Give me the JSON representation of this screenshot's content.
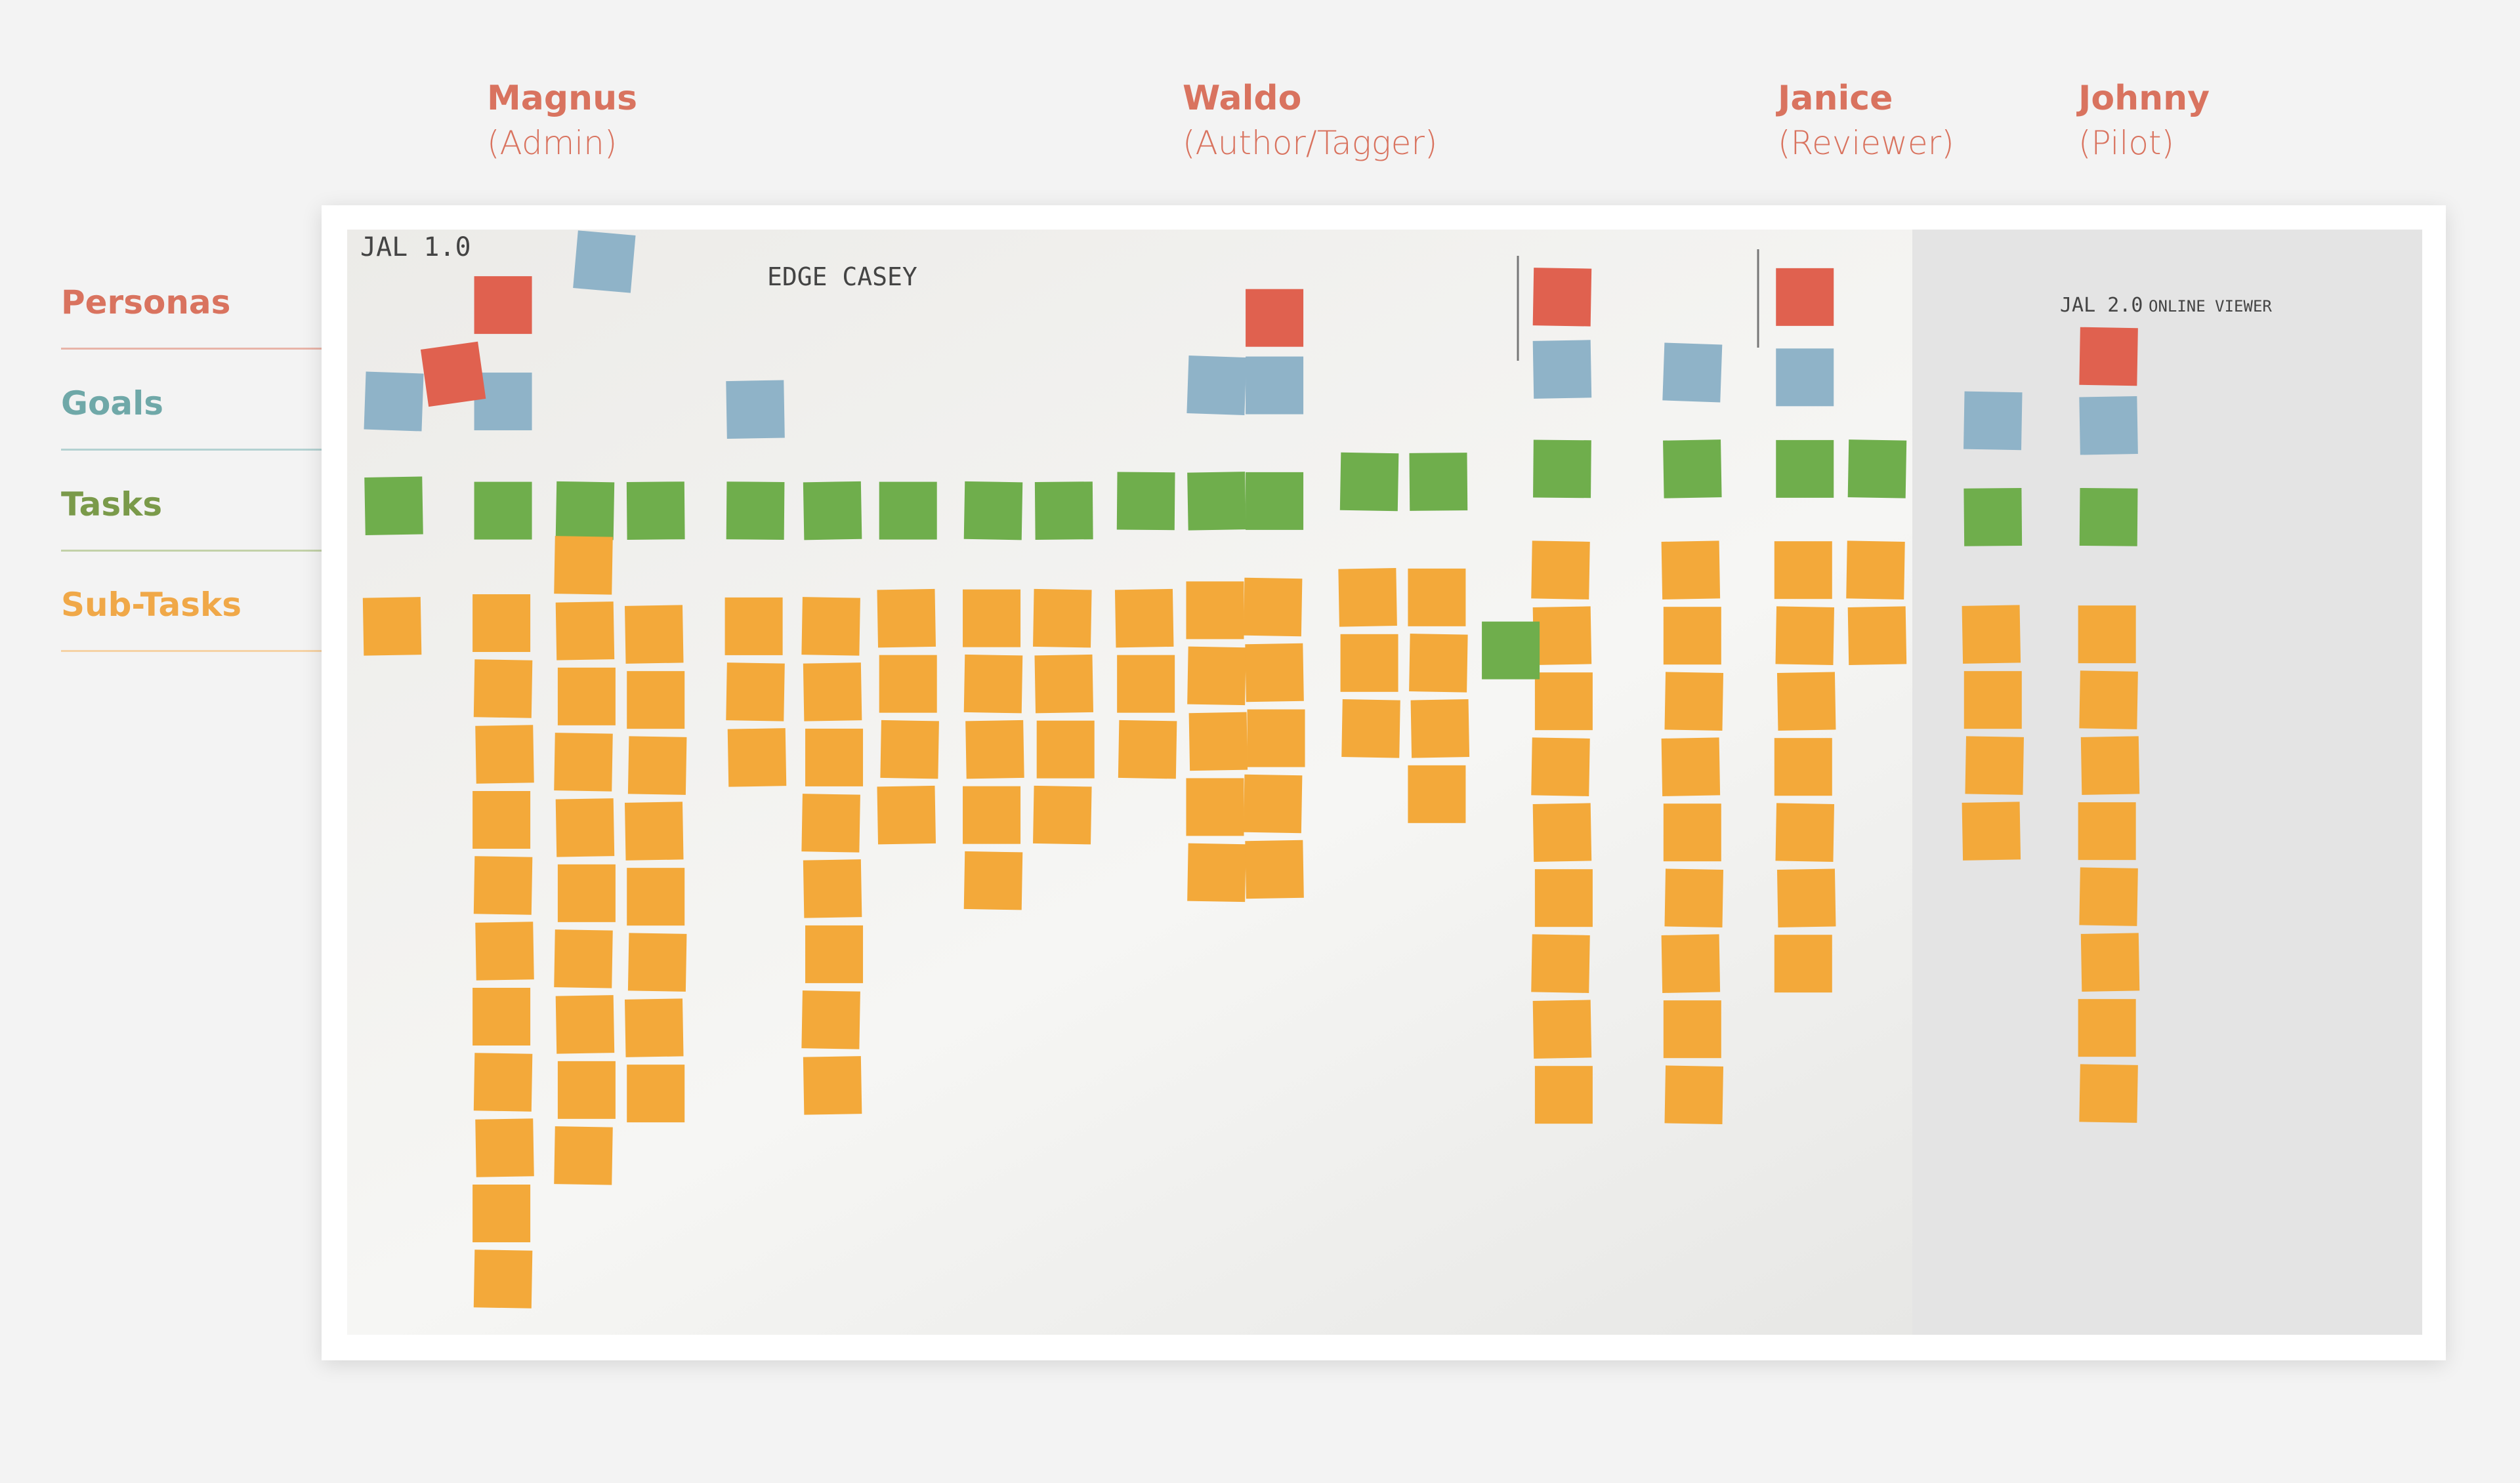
{
  "personas": [
    {
      "name": "Magnus",
      "role": "(Admin)"
    },
    {
      "name": "Waldo",
      "role": "(Author/Tagger)"
    },
    {
      "name": "Janice",
      "role": "(Reviewer)"
    },
    {
      "name": "Johnny",
      "role": "(Pilot)"
    }
  ],
  "rows": [
    "Personas",
    "Goals",
    "Tasks",
    "Sub-Tasks"
  ],
  "board": {
    "labels": [
      "JAL 1.0",
      "EDGE CASEY",
      "JAL 2.0",
      "ONLINE VIEWER"
    ]
  }
}
